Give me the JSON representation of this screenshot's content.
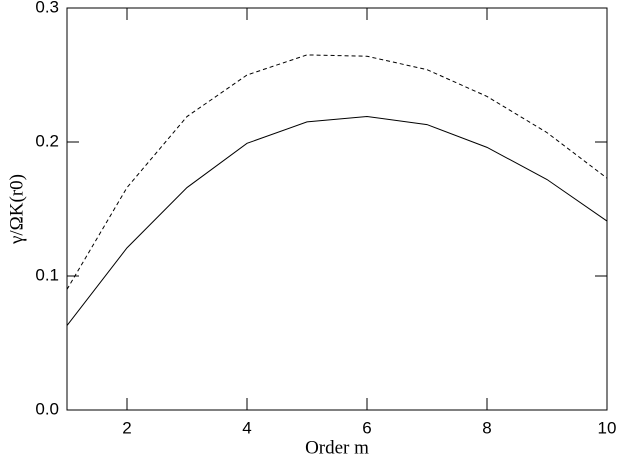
{
  "chart_data": {
    "type": "line",
    "x_label": "Order m",
    "y_label": "γ/ΩK(r0)",
    "x": [
      1,
      2,
      3,
      4,
      5,
      6,
      7,
      8,
      9,
      10
    ],
    "series": [
      {
        "color": "#000000",
        "dash": "solid",
        "values": [
          0.063,
          0.121,
          0.166,
          0.199,
          0.215,
          0.219,
          0.213,
          0.196,
          0.172,
          0.141
        ]
      },
      {
        "color": "#000000",
        "dash": "dashed",
        "values": [
          0.09,
          0.166,
          0.219,
          0.25,
          0.265,
          0.264,
          0.254,
          0.234,
          0.207,
          0.173
        ]
      }
    ],
    "xlim": [
      1,
      10
    ],
    "xticks": [
      2,
      4,
      6,
      8,
      10
    ],
    "ylim": [
      0,
      0.3
    ],
    "yticks": [
      {
        "value": 0,
        "label": "0.0"
      },
      0.1,
      0.2,
      0.3
    ]
  }
}
